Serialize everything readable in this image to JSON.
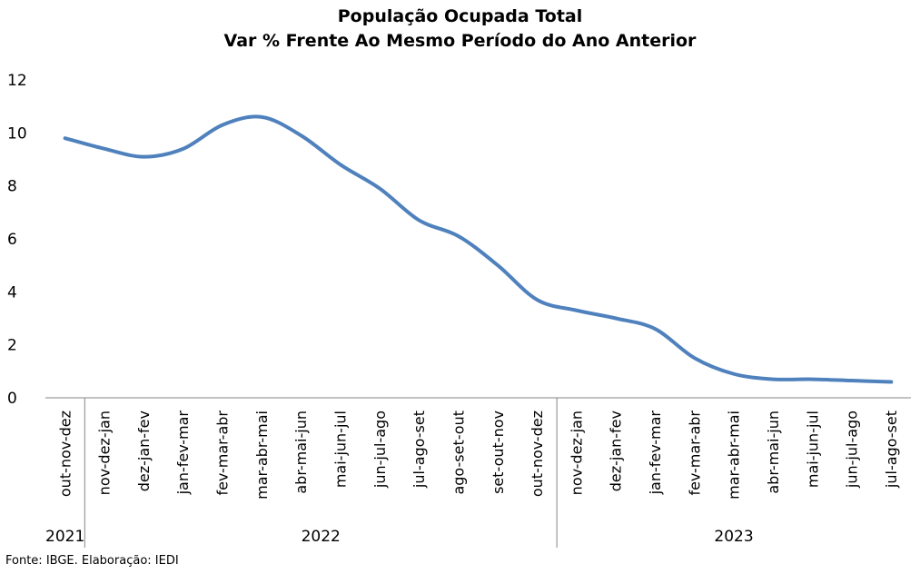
{
  "chart_data": {
    "type": "line",
    "title": "População Ocupada Total",
    "subtitle": "Var % Frente Ao Mesmo Período do Ano Anterior",
    "categories": [
      "out-nov-dez",
      "nov-dez-jan",
      "dez-jan-fev",
      "jan-fev-mar",
      "fev-mar-abr",
      "mar-abr-mai",
      "abr-mai-jun",
      "mai-jun-jul",
      "jun-jul-ago",
      "jul-ago-set",
      "ago-set-out",
      "set-out-nov",
      "out-nov-dez",
      "nov-dez-jan",
      "dez-jan-fev",
      "jan-fev-mar",
      "fev-mar-abr",
      "mar-abr-mai",
      "abr-mai-jun",
      "mai-jun-jul",
      "jun-jul-ago",
      "jul-ago-set"
    ],
    "year_groups": [
      {
        "label": "2021",
        "start": 0,
        "end": 0
      },
      {
        "label": "2022",
        "start": 1,
        "end": 12
      },
      {
        "label": "2023",
        "start": 13,
        "end": 21
      }
    ],
    "series": [
      {
        "color": "#4f81bd",
        "values": [
          9.8,
          9.4,
          9.1,
          9.4,
          10.3,
          10.6,
          9.9,
          8.8,
          7.9,
          6.7,
          6.1,
          5.0,
          3.7,
          3.3,
          3.0,
          2.6,
          1.5,
          0.9,
          0.7,
          0.7,
          0.65,
          0.6
        ]
      }
    ],
    "ylim": [
      0,
      12
    ],
    "yticks": [
      0,
      2,
      4,
      6,
      8,
      10,
      12
    ],
    "grid": false,
    "legend": "none"
  },
  "source": "Fonte: IBGE. Elaboração: IEDI"
}
